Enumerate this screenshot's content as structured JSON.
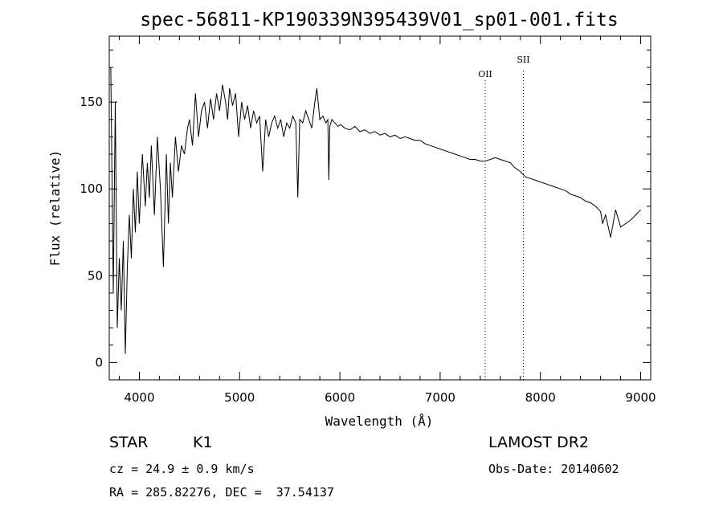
{
  "chart_data": {
    "type": "line",
    "title": "spec-56811-KP190339N395439V01_sp01-001.fits",
    "xlabel": "Wavelength (Å)",
    "ylabel": "Flux (relative)",
    "xlim": [
      3700,
      9100
    ],
    "ylim": [
      -10,
      188
    ],
    "x_ticks": [
      4000,
      5000,
      6000,
      7000,
      8000,
      9000
    ],
    "x_tick_labels": [
      "4000",
      "5000",
      "6000",
      "7000",
      "8000",
      "9000"
    ],
    "y_ticks": [
      0,
      50,
      100,
      150
    ],
    "y_tick_labels": [
      "0",
      "50",
      "100",
      "150"
    ],
    "grid": false,
    "line_color": "#000000",
    "annotations": [
      {
        "label": "OII",
        "x": 7450
      },
      {
        "label": "SII",
        "x": 7830
      }
    ],
    "series": [
      {
        "x": [
          3715,
          3740,
          3760,
          3780,
          3800,
          3820,
          3840,
          3860,
          3880,
          3900,
          3920,
          3940,
          3960,
          3980,
          4000,
          4030,
          4060,
          4080,
          4100,
          4120,
          4150,
          4180,
          4210,
          4240,
          4270,
          4290,
          4310,
          4330,
          4360,
          4390,
          4420,
          4450,
          4480,
          4500,
          4530,
          4560,
          4590,
          4620,
          4650,
          4680,
          4710,
          4740,
          4770,
          4800,
          4830,
          4860,
          4880,
          4900,
          4930,
          4960,
          4990,
          5020,
          5050,
          5080,
          5110,
          5140,
          5170,
          5200,
          5230,
          5260,
          5290,
          5320,
          5350,
          5380,
          5410,
          5440,
          5470,
          5500,
          5530,
          5560,
          5580,
          5600,
          5630,
          5660,
          5690,
          5720,
          5750,
          5770,
          5800,
          5830,
          5860,
          5880,
          5890,
          5900,
          5920,
          5950,
          5980,
          6010,
          6050,
          6100,
          6150,
          6200,
          6250,
          6300,
          6350,
          6400,
          6450,
          6500,
          6550,
          6600,
          6650,
          6700,
          6750,
          6800,
          6850,
          6900,
          6950,
          7000,
          7050,
          7100,
          7150,
          7200,
          7250,
          7300,
          7350,
          7400,
          7450,
          7500,
          7550,
          7600,
          7650,
          7700,
          7750,
          7800,
          7850,
          7900,
          7950,
          8000,
          8050,
          8100,
          8150,
          8200,
          8250,
          8300,
          8350,
          8400,
          8450,
          8500,
          8550,
          8600,
          8620,
          8650,
          8700,
          8750,
          8800,
          8850,
          8900,
          8950,
          9000
        ],
        "y": [
          170,
          40,
          150,
          20,
          60,
          30,
          70,
          5,
          55,
          85,
          60,
          100,
          75,
          110,
          80,
          120,
          90,
          115,
          95,
          125,
          85,
          130,
          100,
          55,
          120,
          80,
          115,
          95,
          130,
          110,
          125,
          120,
          135,
          140,
          125,
          155,
          130,
          145,
          150,
          135,
          152,
          140,
          155,
          145,
          160,
          150,
          140,
          158,
          148,
          155,
          130,
          150,
          140,
          148,
          135,
          145,
          138,
          142,
          110,
          140,
          130,
          138,
          142,
          135,
          140,
          130,
          138,
          135,
          142,
          138,
          95,
          140,
          138,
          145,
          140,
          135,
          150,
          158,
          140,
          142,
          138,
          140,
          105,
          136,
          140,
          138,
          136,
          137,
          135,
          134,
          136,
          133,
          134,
          132,
          133,
          131,
          132,
          130,
          131,
          129,
          130,
          129,
          128,
          128,
          126,
          125,
          124,
          123,
          122,
          121,
          120,
          119,
          118,
          117,
          117,
          116,
          116,
          117,
          118,
          117,
          116,
          115,
          112,
          110,
          107,
          106,
          105,
          104,
          103,
          102,
          101,
          100,
          99,
          97,
          96,
          95,
          93,
          92,
          90,
          87,
          80,
          85,
          72,
          88,
          78,
          80,
          82,
          85,
          88
        ]
      }
    ]
  },
  "info": {
    "object_class": "STAR",
    "subclass": "K1",
    "cz": "cz = 24.9 ± 0.9 km/s",
    "coords": "RA = 285.82276, DEC =  37.54137",
    "survey": "LAMOST DR2",
    "obs_date": "Obs-Date: 20140602"
  }
}
